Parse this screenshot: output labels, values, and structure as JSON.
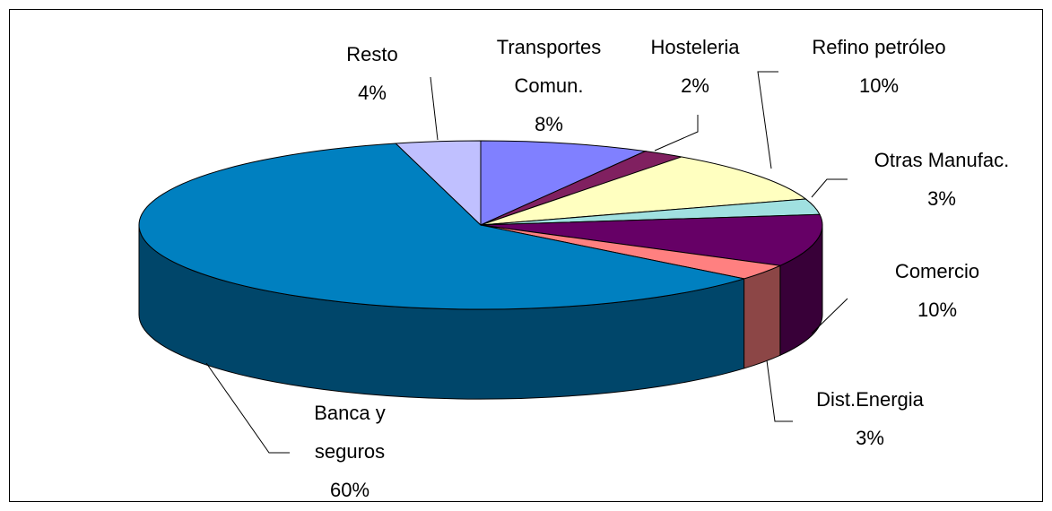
{
  "chart_data": {
    "type": "pie",
    "categories": [
      "Transportes Comun.",
      "Hosteleria",
      "Refino petróleo",
      "Otras Manufac.",
      "Comercio",
      "Dist.Energia",
      "Banca y seguros",
      "Resto"
    ],
    "values": [
      8,
      2,
      10,
      3,
      10,
      3,
      60,
      4
    ],
    "value_labels": [
      "8%",
      "2%",
      "10%",
      "3%",
      "10%",
      "3%",
      "60%",
      "4%"
    ],
    "colors": [
      "#8080ff",
      "#802060",
      "#ffffc0",
      "#a0e0e0",
      "#660066",
      "#ff8080",
      "#0080c0",
      "#c0c0ff"
    ]
  }
}
